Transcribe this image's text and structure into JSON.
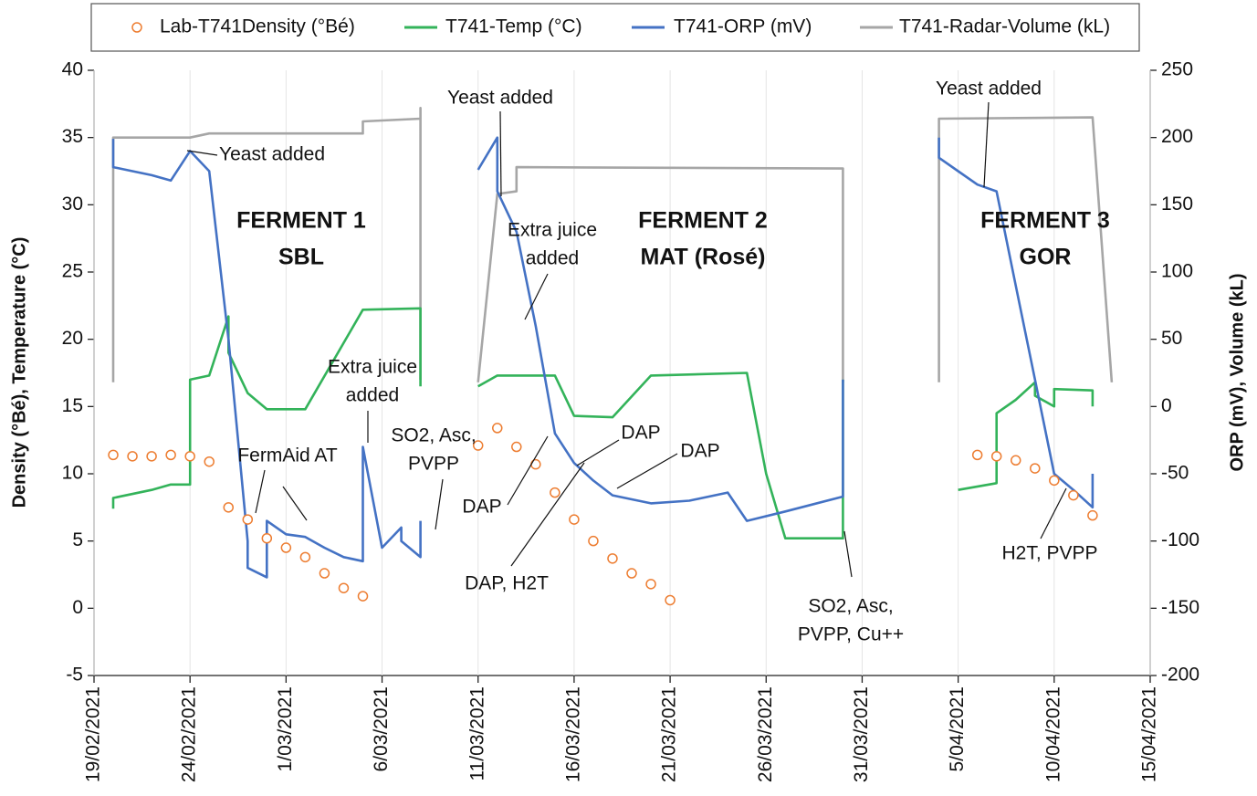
{
  "chart_data": {
    "type": "line",
    "y_label": "Density (°Bé), Temperature (°C)",
    "y2_label": "ORP (mV), Volume (kL)",
    "xlim": [
      "2021-02-19",
      "2021-04-15"
    ],
    "xticks": [
      {
        "value": "2021-02-19",
        "label": "19/02/2021"
      },
      {
        "value": "2021-02-24",
        "label": "24/02/2021"
      },
      {
        "value": "2021-03-01",
        "label": "1/03/2021"
      },
      {
        "value": "2021-03-06",
        "label": "6/03/2021"
      },
      {
        "value": "2021-03-11",
        "label": "11/03/2021"
      },
      {
        "value": "2021-03-16",
        "label": "16/03/2021"
      },
      {
        "value": "2021-03-21",
        "label": "21/03/2021"
      },
      {
        "value": "2021-03-26",
        "label": "26/03/2021"
      },
      {
        "value": "2021-03-31",
        "label": "31/03/2021"
      },
      {
        "value": "2021-04-05",
        "label": "5/04/2021"
      },
      {
        "value": "2021-04-10",
        "label": "10/04/2021"
      },
      {
        "value": "2021-04-15",
        "label": "15/04/2021"
      }
    ],
    "ylim": [
      -5,
      40
    ],
    "yticks": [
      -5,
      0,
      5,
      10,
      15,
      20,
      25,
      30,
      35,
      40
    ],
    "y2lim": [
      -200,
      250
    ],
    "y2ticks": [
      -200,
      -150,
      -100,
      -50,
      0,
      50,
      100,
      150,
      200,
      250
    ],
    "legend": "top",
    "series": [
      {
        "name": "T741-Radar-Volume (kL)",
        "color": "#a6a6a6",
        "axis": "y2",
        "marker": "line",
        "x": [
          "2021-02-20",
          "2021-02-20",
          "2021-02-24",
          "2021-02-25",
          "2021-03-05",
          "2021-03-05",
          "2021-03-08",
          "2021-03-08",
          "2021-03-08",
          null,
          "2021-03-11",
          "2021-03-12",
          "2021-03-13",
          "2021-03-13",
          "2021-03-30",
          "2021-03-30",
          null,
          "2021-04-04",
          "2021-04-04",
          "2021-04-12",
          "2021-04-13"
        ],
        "values": [
          18,
          200,
          200,
          203,
          203,
          212,
          214,
          222,
          20,
          null,
          18,
          158,
          160,
          178,
          177,
          18,
          null,
          18,
          214,
          215,
          18
        ]
      },
      {
        "name": "T741-Temp (°C)",
        "color": "#33b35a",
        "axis": "y",
        "marker": "line",
        "x": [
          "2021-02-20",
          "2021-02-20",
          "2021-02-22",
          "2021-02-23",
          "2021-02-24",
          "2021-02-24",
          "2021-02-25",
          "2021-02-26",
          "2021-02-26",
          "2021-02-27",
          "2021-02-28",
          "2021-03-01",
          "2021-03-02",
          "2021-03-05",
          "2021-03-08",
          "2021-03-08",
          null,
          "2021-03-11",
          "2021-03-12",
          "2021-03-15",
          "2021-03-16",
          "2021-03-18",
          "2021-03-20",
          "2021-03-25",
          "2021-03-26",
          "2021-03-27",
          "2021-03-30",
          "2021-03-30",
          null,
          "2021-04-05",
          "2021-04-07",
          "2021-04-07",
          "2021-04-08",
          "2021-04-09",
          "2021-04-09",
          "2021-04-10",
          "2021-04-10",
          "2021-04-12",
          "2021-04-12"
        ],
        "values": [
          7.4,
          8.2,
          8.8,
          9.2,
          9.2,
          17.0,
          17.3,
          21.7,
          19,
          16,
          14.8,
          14.8,
          14.8,
          22.2,
          22.3,
          16.5,
          null,
          16.5,
          17.3,
          17.3,
          14.3,
          14.2,
          17.3,
          17.5,
          10,
          5.2,
          5.2,
          17,
          null,
          8.8,
          9.3,
          14.5,
          15.5,
          16.8,
          15.8,
          15,
          16.3,
          16.2,
          15
        ]
      },
      {
        "name": "T741-ORP (mV)",
        "color": "#4472c4",
        "axis": "y2",
        "marker": "line",
        "x": [
          "2021-02-20",
          "2021-02-20",
          "2021-02-21",
          "2021-02-22",
          "2021-02-23",
          "2021-02-24",
          "2021-02-25",
          "2021-02-26",
          "2021-02-27",
          "2021-02-27",
          "2021-02-28",
          "2021-02-28",
          "2021-03-01",
          "2021-03-02",
          "2021-03-03",
          "2021-03-04",
          "2021-03-05",
          "2021-03-05",
          "2021-03-06",
          "2021-03-07",
          "2021-03-07",
          "2021-03-08",
          "2021-03-08",
          null,
          "2021-03-11",
          "2021-03-12",
          "2021-03-12",
          "2021-03-13",
          "2021-03-14",
          "2021-03-15",
          "2021-03-16",
          "2021-03-17",
          "2021-03-18",
          "2021-03-20",
          "2021-03-22",
          "2021-03-24",
          "2021-03-25",
          "2021-03-27",
          "2021-03-30",
          "2021-03-30",
          null,
          "2021-04-04",
          "2021-04-04",
          "2021-04-05",
          "2021-04-06",
          "2021-04-07",
          "2021-04-08",
          "2021-04-09",
          "2021-04-10",
          "2021-04-11",
          "2021-04-12",
          "2021-04-12"
        ],
        "values": [
          199,
          178,
          175,
          172,
          168,
          190,
          175,
          50,
          -100,
          -120,
          -127,
          -85,
          -95,
          -97,
          -105,
          -112,
          -115,
          -30,
          -105,
          -90,
          -100,
          -112,
          -85,
          null,
          176,
          200,
          160,
          130,
          60,
          -20,
          -42,
          -55,
          -66,
          -72,
          -70,
          -64,
          -85,
          -78,
          -67,
          20,
          null,
          200,
          185,
          175,
          165,
          160,
          90,
          20,
          -50,
          -62,
          -75,
          -50
        ]
      },
      {
        "name": "Lab-T741Density (°Bé)",
        "color": "#ed7d31",
        "axis": "y",
        "marker": "circle",
        "x": [
          "2021-02-20",
          "2021-02-21",
          "2021-02-22",
          "2021-02-23",
          "2021-02-24",
          "2021-02-25",
          "2021-02-26",
          "2021-02-27",
          "2021-02-28",
          "2021-03-01",
          "2021-03-02",
          "2021-03-03",
          "2021-03-04",
          "2021-03-05",
          "2021-03-11",
          "2021-03-12",
          "2021-03-13",
          "2021-03-14",
          "2021-03-15",
          "2021-03-16",
          "2021-03-17",
          "2021-03-18",
          "2021-03-19",
          "2021-03-20",
          "2021-03-21",
          "2021-04-06",
          "2021-04-07",
          "2021-04-08",
          "2021-04-09",
          "2021-04-10",
          "2021-04-11",
          "2021-04-12"
        ],
        "values": [
          11.4,
          11.3,
          11.3,
          11.4,
          11.3,
          10.9,
          7.5,
          6.6,
          5.2,
          4.5,
          3.8,
          2.6,
          1.5,
          0.9,
          12.1,
          13.4,
          12.0,
          10.7,
          8.6,
          6.6,
          5.0,
          3.7,
          2.6,
          1.8,
          0.6,
          11.4,
          11.3,
          11.0,
          10.4,
          9.5,
          8.4,
          6.9
        ]
      }
    ],
    "legend_order": [
      3,
      1,
      2,
      0
    ],
    "annotations": [
      {
        "lines": [
          "Yeast added"
        ]
      },
      {
        "lines": [
          "FERMENT 1",
          "SBL"
        ]
      },
      {
        "lines": [
          "FermAid AT"
        ]
      },
      {
        "lines": [
          "Extra juice",
          "added"
        ]
      },
      {
        "lines": [
          "SO2, Asc,",
          "PVPP"
        ]
      },
      {
        "lines": [
          "Yeast added"
        ]
      },
      {
        "lines": [
          "Extra juice",
          "added"
        ]
      },
      {
        "lines": [
          "FERMENT 2",
          "MAT (Rosé)"
        ]
      },
      {
        "lines": [
          "DAP"
        ]
      },
      {
        "lines": [
          "DAP"
        ]
      },
      {
        "lines": [
          "DAP"
        ]
      },
      {
        "lines": [
          "DAP, H2T"
        ]
      },
      {
        "lines": [
          "SO2, Asc,",
          "PVPP, Cu++"
        ]
      },
      {
        "lines": [
          "Yeast added"
        ]
      },
      {
        "lines": [
          "FERMENT 3",
          "GOR"
        ]
      },
      {
        "lines": [
          "H2T,  PVPP"
        ]
      }
    ]
  }
}
